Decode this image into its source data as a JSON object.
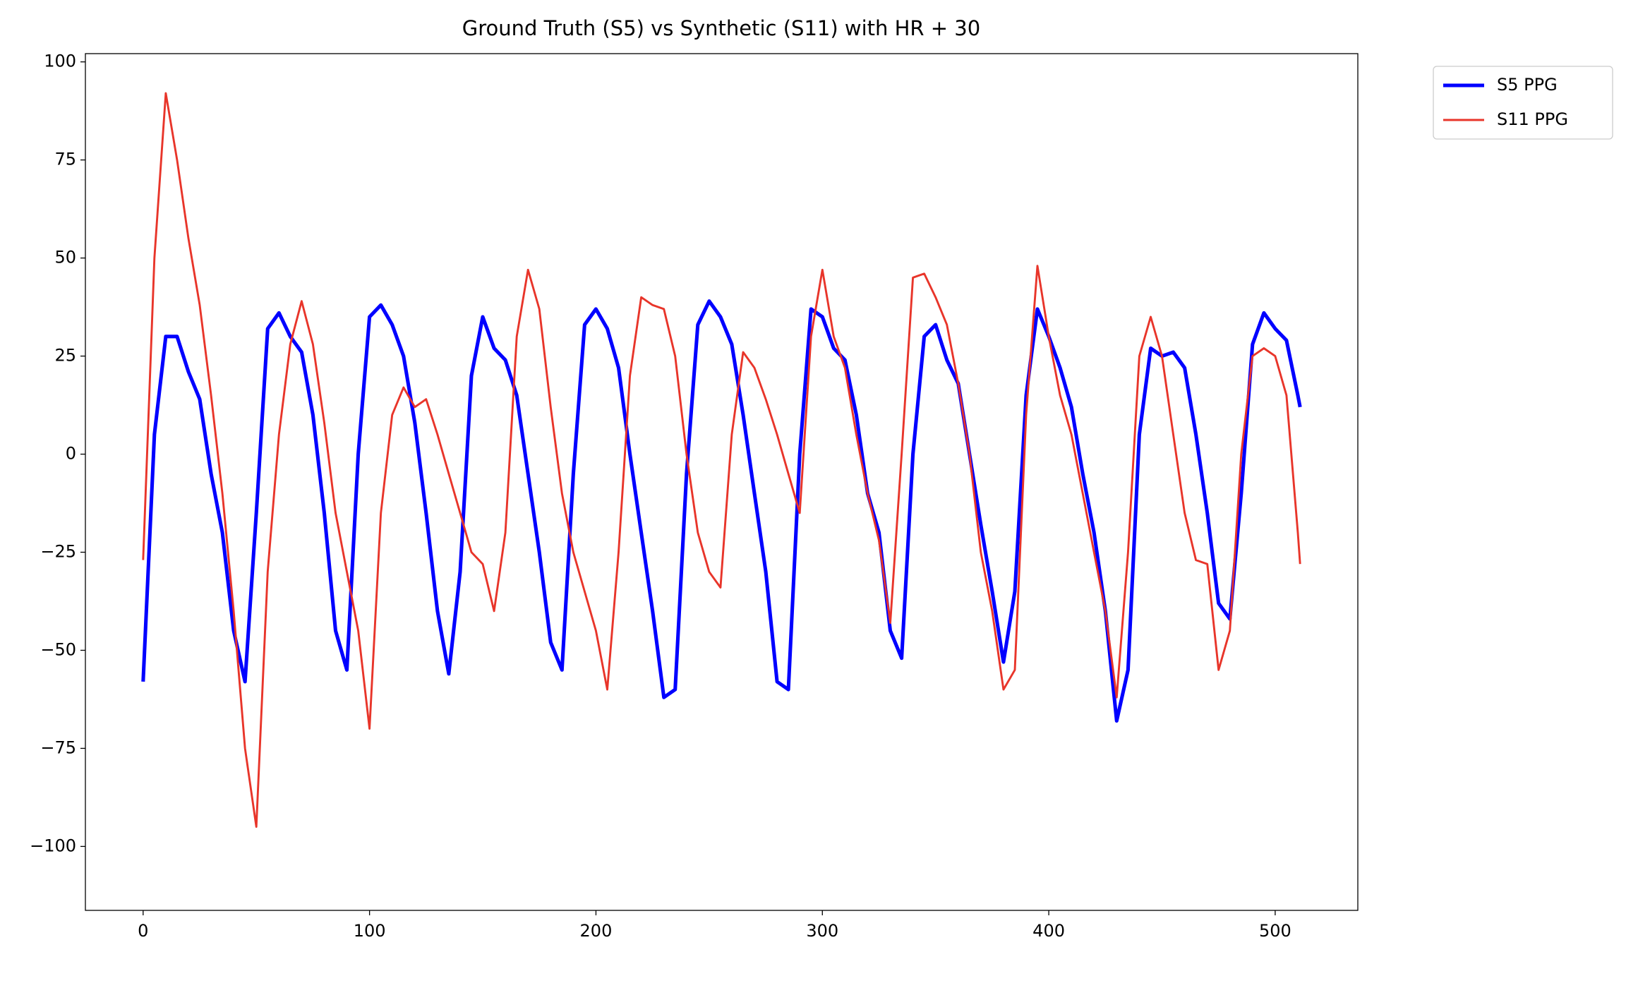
{
  "chart_data": {
    "type": "line",
    "title": "Ground Truth (S5) vs Synthetic (S11) with HR + 30",
    "x": [
      0,
      5,
      10,
      15,
      20,
      25,
      30,
      35,
      40,
      45,
      50,
      55,
      60,
      65,
      70,
      75,
      80,
      85,
      90,
      95,
      100,
      105,
      110,
      115,
      120,
      125,
      130,
      135,
      140,
      145,
      150,
      155,
      160,
      165,
      170,
      175,
      180,
      185,
      190,
      195,
      200,
      205,
      210,
      215,
      220,
      225,
      230,
      235,
      240,
      245,
      250,
      255,
      260,
      265,
      270,
      275,
      280,
      285,
      290,
      295,
      300,
      305,
      310,
      315,
      320,
      325,
      330,
      335,
      340,
      345,
      350,
      355,
      360,
      365,
      370,
      375,
      380,
      385,
      390,
      395,
      400,
      405,
      410,
      415,
      420,
      425,
      430,
      435,
      440,
      445,
      450,
      455,
      460,
      465,
      470,
      475,
      480,
      485,
      490,
      495,
      500,
      505,
      510,
      511
    ],
    "series": [
      {
        "name": "S5 PPG",
        "color": "#0000ff",
        "width": 3.5,
        "values": [
          -58,
          5,
          30,
          30,
          21,
          14,
          -5,
          -20,
          -45,
          -58,
          -15,
          32,
          36,
          30,
          26,
          10,
          -15,
          -45,
          -55,
          0,
          35,
          38,
          33,
          25,
          8,
          -15,
          -40,
          -56,
          -30,
          20,
          35,
          27,
          24,
          15,
          -5,
          -25,
          -48,
          -55,
          -5,
          33,
          37,
          32,
          22,
          0,
          -20,
          -40,
          -62,
          -60,
          -5,
          33,
          39,
          35,
          28,
          10,
          -10,
          -30,
          -58,
          -60,
          0,
          37,
          35,
          27,
          24,
          10,
          -10,
          -20,
          -45,
          -52,
          0,
          30,
          33,
          24,
          18,
          0,
          -18,
          -35,
          -53,
          -35,
          15,
          37,
          30,
          22,
          12,
          -5,
          -20,
          -40,
          -68,
          -55,
          5,
          27,
          25,
          26,
          22,
          5,
          -15,
          -38,
          -42,
          -10,
          28,
          36,
          32,
          29,
          15,
          12
        ]
      },
      {
        "name": "S11 PPG",
        "color": "#e8352a",
        "width": 2,
        "values": [
          -27,
          50,
          92,
          75,
          55,
          38,
          15,
          -10,
          -40,
          -75,
          -95,
          -30,
          5,
          28,
          39,
          28,
          8,
          -15,
          -30,
          -45,
          -70,
          -15,
          10,
          17,
          12,
          14,
          5,
          -5,
          -15,
          -25,
          -28,
          -40,
          -20,
          30,
          47,
          37,
          12,
          -10,
          -25,
          -35,
          -45,
          -60,
          -25,
          20,
          40,
          38,
          37,
          25,
          0,
          -20,
          -30,
          -34,
          5,
          26,
          22,
          14,
          5,
          -5,
          -15,
          30,
          47,
          30,
          22,
          5,
          -10,
          -22,
          -43,
          0,
          45,
          46,
          40,
          33,
          18,
          0,
          -25,
          -40,
          -60,
          -55,
          10,
          48,
          30,
          15,
          5,
          -10,
          -25,
          -40,
          -62,
          -25,
          25,
          35,
          25,
          5,
          -15,
          -27,
          -28,
          -55,
          -45,
          0,
          25,
          27,
          25,
          15,
          -20,
          -28
        ]
      }
    ],
    "xlim": [
      -25.5,
      536.5
    ],
    "ylim": [
      -116.3,
      102.1
    ],
    "xticks": [
      0,
      100,
      200,
      300,
      400,
      500
    ],
    "yticks": [
      {
        "value": -100,
        "label": "−100"
      },
      {
        "value": -75,
        "label": "−75"
      },
      {
        "value": -50,
        "label": "−50"
      },
      {
        "value": -25,
        "label": "−25"
      },
      0,
      25,
      50,
      75,
      100
    ],
    "legend": "outside-upper-right",
    "grid": false
  }
}
